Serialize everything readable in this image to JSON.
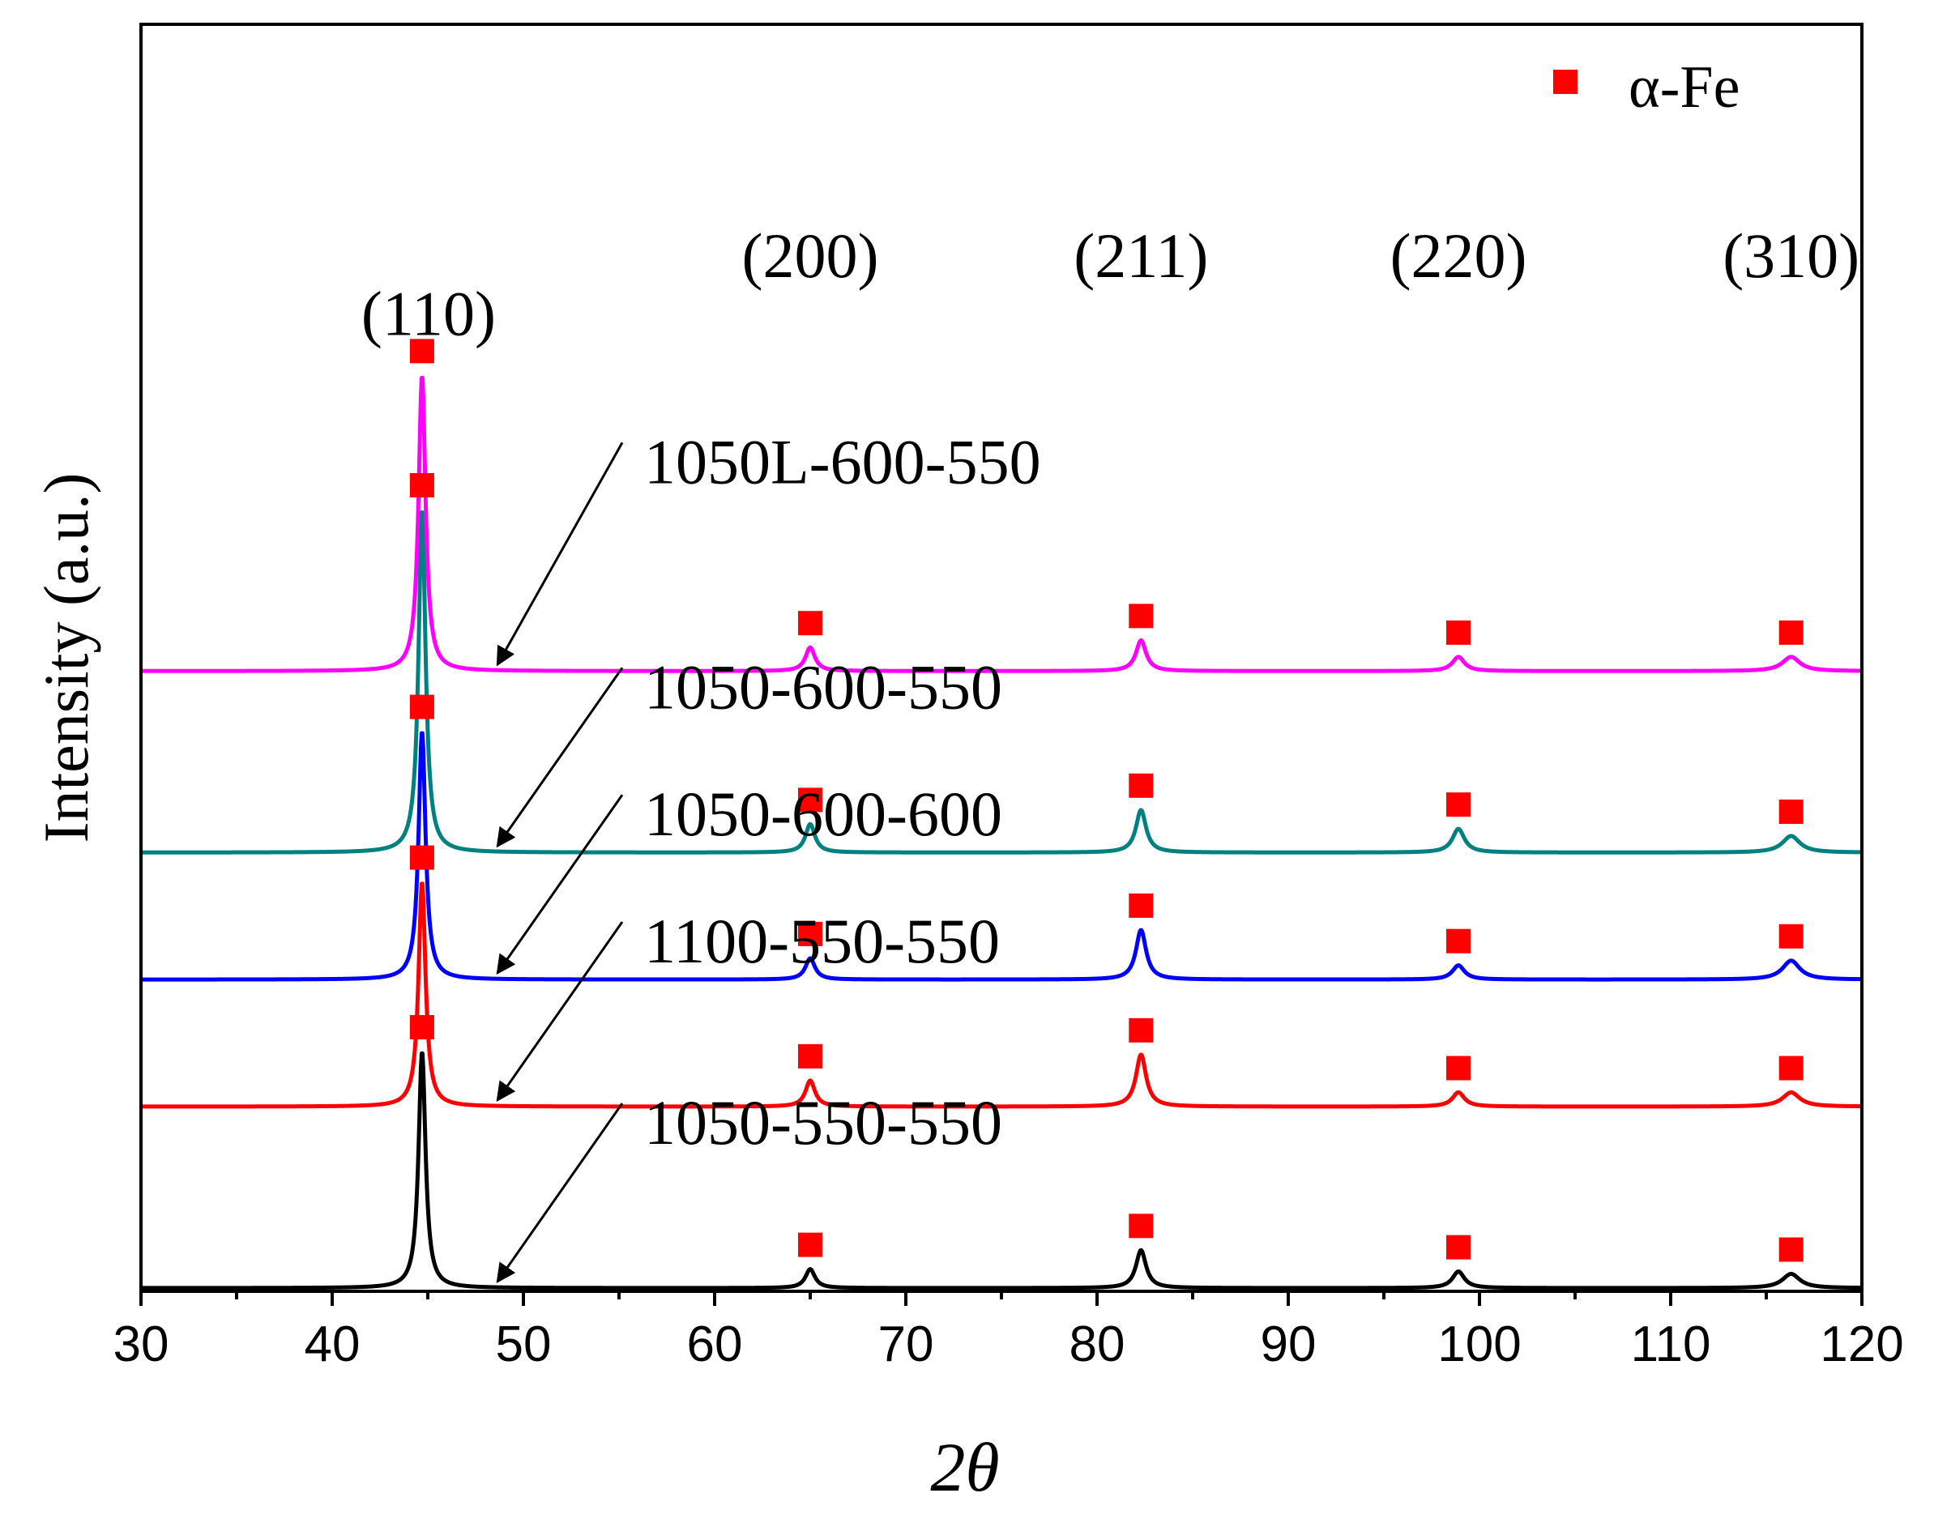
{
  "chart_data": {
    "type": "line",
    "title": "",
    "xlabel": "2θ",
    "ylabel": "Intensity (a.u.)",
    "xlim": [
      30,
      120
    ],
    "x_ticks": [
      "30",
      "40",
      "50",
      "60",
      "70",
      "80",
      "90",
      "100",
      "110",
      "120"
    ],
    "y_ticks": [],
    "legend": {
      "marker": "square",
      "color": "#ff0000",
      "label": "α-Fe",
      "placement": "top-right"
    },
    "peaks": [
      {
        "two_theta": 44.7,
        "plane": "(110)"
      },
      {
        "two_theta": 65.0,
        "plane": "(200)"
      },
      {
        "two_theta": 82.3,
        "plane": "(211)"
      },
      {
        "two_theta": 98.9,
        "plane": "(220)"
      },
      {
        "two_theta": 116.3,
        "plane": "(310)"
      }
    ],
    "peak_widths": [
      0.22,
      0.3,
      0.32,
      0.38,
      0.55
    ],
    "series": [
      {
        "name": "1050-550-550",
        "color": "#000000",
        "baseline": 0.0,
        "intensities": [
          100,
          8,
          16,
          7,
          6
        ]
      },
      {
        "name": "1100-550-550",
        "color": "#ff0000",
        "baseline": 1.0,
        "intensities": [
          95,
          11,
          22,
          6,
          6
        ]
      },
      {
        "name": "1050-600-600",
        "color": "#0000ff",
        "baseline": 1.7,
        "intensities": [
          105,
          9,
          21,
          6,
          8
        ]
      },
      {
        "name": "1050-600-550",
        "color": "#008080",
        "baseline": 2.4,
        "intensities": [
          145,
          12,
          18,
          10,
          7
        ]
      },
      {
        "name": "1050L-600-550",
        "color": "#ff00ff",
        "baseline": 3.4,
        "intensities": [
          125,
          10,
          13,
          6,
          6
        ]
      }
    ]
  }
}
